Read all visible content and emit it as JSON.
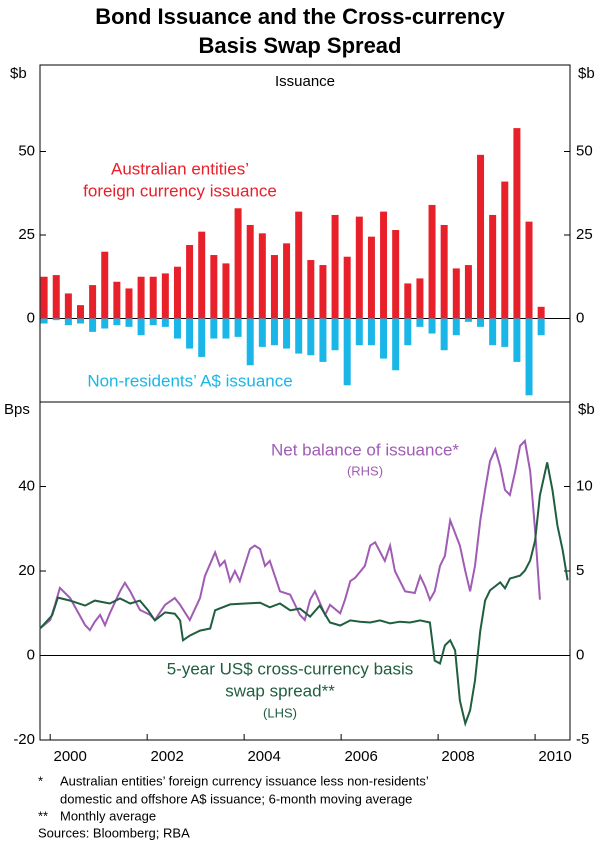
{
  "title": [
    "Bond Issuance and the Cross-currency",
    "Basis Swap Spread"
  ],
  "notes": [
    {
      "marker": "*",
      "lines": [
        "Australian entities’ foreign currency issuance less non-residents’",
        "domestic and offshore A$ issuance; 6-month moving average"
      ]
    },
    {
      "marker": "**",
      "lines": [
        "Monthly average"
      ]
    },
    {
      "lines": [
        "Sources: Bloomberg; RBA"
      ]
    }
  ],
  "chart_data": [
    {
      "type": "bar",
      "title": "Issuance",
      "y_label": "$b",
      "y2_label": "$b",
      "xlim": [
        1999.79,
        2010.72
      ],
      "ylim": [
        -25,
        75
      ],
      "yticks": [
        0,
        25,
        50
      ],
      "y2lim": [
        -25,
        75
      ],
      "y2ticks": [
        0,
        25,
        50
      ],
      "zero_line": true,
      "x": [
        1999.875,
        2000.125,
        2000.375,
        2000.625,
        2000.875,
        2001.125,
        2001.375,
        2001.625,
        2001.875,
        2002.125,
        2002.375,
        2002.625,
        2002.875,
        2003.125,
        2003.375,
        2003.625,
        2003.875,
        2004.125,
        2004.375,
        2004.625,
        2004.875,
        2005.125,
        2005.375,
        2005.625,
        2005.875,
        2006.125,
        2006.375,
        2006.625,
        2006.875,
        2007.125,
        2007.375,
        2007.625,
        2007.875,
        2008.125,
        2008.375,
        2008.625,
        2008.875,
        2009.125,
        2009.375,
        2009.625,
        2009.875,
        2010.125
      ],
      "series": [
        {
          "name": [
            "Australian entities’",
            "foreign currency issuance"
          ],
          "color": "#e8202a",
          "values": [
            12.5,
            13,
            7.5,
            4,
            10,
            20,
            11,
            9,
            12.5,
            12.5,
            13.5,
            15.5,
            22,
            26,
            19,
            16.5,
            33,
            28,
            25.5,
            19,
            22.5,
            32,
            17.5,
            16,
            31,
            18.5,
            30.5,
            24.5,
            32,
            26.5,
            10.5,
            12,
            34,
            28,
            15,
            16,
            49,
            31,
            41,
            57,
            29,
            3.5
          ]
        },
        {
          "name": [
            "Non-residents’ A$ issuance"
          ],
          "color": "#1ab6e8",
          "values": [
            -1.5,
            -0.5,
            -2,
            -1.5,
            -4,
            -3,
            -2,
            -2.5,
            -5,
            -2,
            -2.5,
            -6,
            -9,
            -11.5,
            -6,
            -6,
            -5.5,
            -14,
            -8.5,
            -8,
            -9,
            -10.5,
            -11,
            -13,
            -9.5,
            -20,
            -8,
            -8,
            -12,
            -15.5,
            -8,
            -2.5,
            -4.5,
            -9.5,
            -5,
            -1,
            -2.5,
            -8,
            -8.5,
            -13,
            -23,
            -5
          ]
        }
      ]
    },
    {
      "type": "line",
      "y_label": "Bps",
      "y2_label": "$b",
      "xlim": [
        1999.79,
        2010.72
      ],
      "xticks": [
        2000,
        2002,
        2004,
        2006,
        2008,
        2010
      ],
      "ylim": [
        -20,
        60
      ],
      "yticks": [
        -20,
        0,
        20,
        40
      ],
      "y2lim": [
        -5,
        15
      ],
      "y2ticks": [
        -5,
        0,
        5,
        10
      ],
      "zero_line": true,
      "series": [
        {
          "name": [
            "Net balance of issuance*",
            "(RHS)"
          ],
          "color": "#a05cb4",
          "axis": "y2",
          "x": [
            1999.79,
            2000.0,
            2000.1,
            2000.2,
            2000.41,
            2000.72,
            2000.82,
            2000.92,
            2001.03,
            2001.13,
            2001.23,
            2001.44,
            2001.54,
            2001.65,
            2001.85,
            2002.06,
            2002.16,
            2002.37,
            2002.57,
            2002.68,
            2002.88,
            2003.09,
            2003.19,
            2003.4,
            2003.5,
            2003.6,
            2003.71,
            2003.81,
            2003.91,
            2004.12,
            2004.22,
            2004.33,
            2004.43,
            2004.53,
            2004.74,
            2004.95,
            2005.15,
            2005.25,
            2005.36,
            2005.46,
            2005.67,
            2005.77,
            2005.98,
            2006.08,
            2006.19,
            2006.29,
            2006.49,
            2006.6,
            2006.7,
            2006.9,
            2007.01,
            2007.11,
            2007.32,
            2007.52,
            2007.63,
            2007.73,
            2007.83,
            2007.93,
            2008.04,
            2008.14,
            2008.25,
            2008.45,
            2008.56,
            2008.66,
            2008.76,
            2008.87,
            2008.97,
            2009.07,
            2009.18,
            2009.28,
            2009.38,
            2009.48,
            2009.59,
            2009.69,
            2009.79,
            2009.9,
            2010.0,
            2010.1
          ],
          "values": [
            1.6,
            2.1,
            3.0,
            4.0,
            3.4,
            1.8,
            1.5,
            2.0,
            2.4,
            1.8,
            2.5,
            3.8,
            4.3,
            3.8,
            2.7,
            2.4,
            2.1,
            3.0,
            3.4,
            3.0,
            2.1,
            3.4,
            4.7,
            6.1,
            5.3,
            5.6,
            4.4,
            5.0,
            4.4,
            6.3,
            6.5,
            6.3,
            5.3,
            5.6,
            3.8,
            3.6,
            2.4,
            2.1,
            3.3,
            3.8,
            2.4,
            3.0,
            2.5,
            3.3,
            4.4,
            4.6,
            5.3,
            6.5,
            6.7,
            5.6,
            6.5,
            5.0,
            3.8,
            3.7,
            4.7,
            4.1,
            3.3,
            3.8,
            5.3,
            5.9,
            8.0,
            6.5,
            5.0,
            3.8,
            5.3,
            8.0,
            9.8,
            11.5,
            12.2,
            11.2,
            9.8,
            9.5,
            10.9,
            12.4,
            12.7,
            10.9,
            7.4,
            3.3
          ]
        },
        {
          "name": [
            "5-year US$ cross-currency basis",
            "swap spread**",
            "(LHS)"
          ],
          "color": "#1f5e3f",
          "x": [
            1999.79,
            2000.04,
            2000.16,
            2000.41,
            2000.72,
            2000.92,
            2001.23,
            2001.44,
            2001.65,
            2001.85,
            2002.02,
            2002.16,
            2002.37,
            2002.57,
            2002.68,
            2002.74,
            2002.88,
            2003.09,
            2003.3,
            2003.4,
            2003.71,
            2004.02,
            2004.33,
            2004.53,
            2004.74,
            2004.95,
            2005.15,
            2005.36,
            2005.56,
            2005.77,
            2005.98,
            2006.19,
            2006.39,
            2006.6,
            2006.8,
            2007.01,
            2007.21,
            2007.42,
            2007.63,
            2007.83,
            2007.93,
            2008.04,
            2008.14,
            2008.25,
            2008.35,
            2008.45,
            2008.56,
            2008.66,
            2008.76,
            2008.87,
            2008.97,
            2009.07,
            2009.28,
            2009.38,
            2009.48,
            2009.69,
            2009.79,
            2009.9,
            2010.0,
            2010.1,
            2010.25,
            2010.36,
            2010.46,
            2010.57,
            2010.67
          ],
          "values": [
            6.4,
            9.5,
            13.7,
            13.0,
            11.8,
            13.0,
            12.3,
            13.5,
            12.3,
            13.0,
            10.7,
            8.3,
            10.2,
            9.9,
            8.3,
            3.6,
            4.7,
            5.9,
            6.4,
            10.7,
            12.1,
            12.3,
            12.5,
            11.4,
            12.3,
            10.7,
            11.1,
            9.2,
            11.8,
            7.8,
            7.1,
            8.3,
            8.0,
            7.8,
            8.3,
            7.6,
            8.0,
            7.8,
            8.3,
            7.8,
            -1.2,
            -1.9,
            2.4,
            3.6,
            1.2,
            -10.7,
            -16.1,
            -13.0,
            -5.9,
            5.9,
            13.0,
            15.4,
            17.3,
            15.9,
            18.2,
            18.9,
            20.1,
            22.5,
            27.2,
            37.9,
            45.7,
            39.1,
            30.8,
            24.9,
            17.8
          ]
        }
      ]
    }
  ]
}
